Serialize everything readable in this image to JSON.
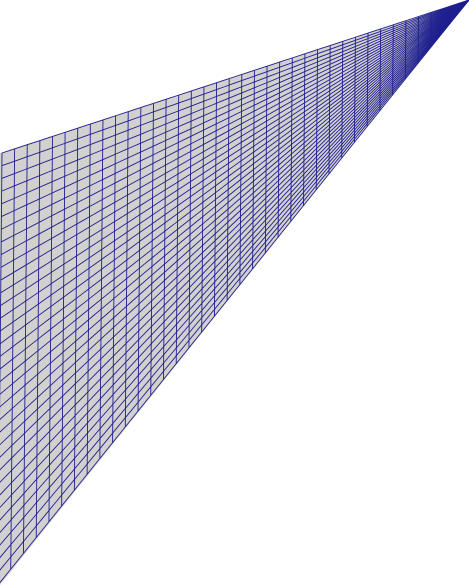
{
  "mesh": {
    "type": "structured quadrilateral mesh",
    "columns": 37,
    "rows": 34,
    "fill_color": "#d3d1cf",
    "edge_color": "#1f1f8f",
    "background_color": "#ffffff"
  }
}
